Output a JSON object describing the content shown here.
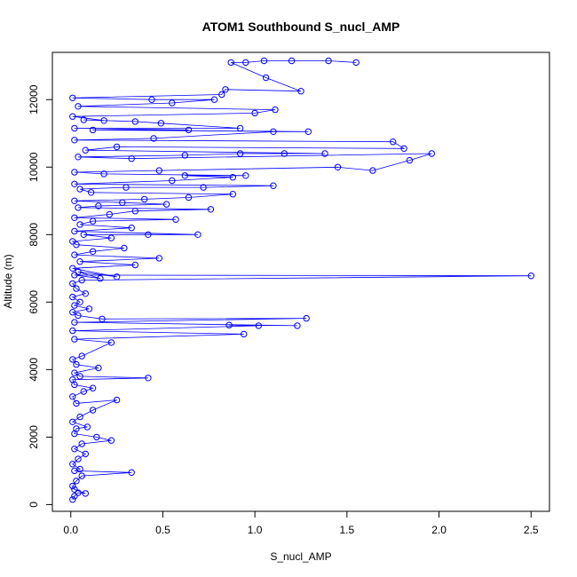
{
  "chart_data": {
    "type": "scatter",
    "title": "ATOM1 Southbound S_nucl_AMP",
    "xlabel": "S_nucl_AMP",
    "ylabel": "Altitude (m)",
    "xlim": [
      -0.1,
      2.6
    ],
    "ylim": [
      -200,
      13400
    ],
    "xticks": [
      0.0,
      0.5,
      1.0,
      1.5,
      2.0,
      2.5
    ],
    "xtick_labels": [
      "0.0",
      "0.5",
      "1.0",
      "1.5",
      "2.0",
      "2.5"
    ],
    "yticks": [
      0,
      2000,
      4000,
      6000,
      8000,
      10000,
      12000
    ],
    "ytick_labels": [
      "0",
      "2000",
      "4000",
      "6000",
      "8000",
      "10000",
      "12000"
    ],
    "grid": false,
    "legend": "none",
    "color": "#0000ff",
    "marker": "open-circle",
    "connected": true,
    "points": [
      [
        0.01,
        150
      ],
      [
        0.02,
        250
      ],
      [
        0.04,
        350
      ],
      [
        0.08,
        330
      ],
      [
        0.02,
        450
      ],
      [
        0.01,
        550
      ],
      [
        0.03,
        700
      ],
      [
        0.06,
        850
      ],
      [
        0.33,
        950
      ],
      [
        0.02,
        1000
      ],
      [
        0.05,
        1050
      ],
      [
        0.01,
        1200
      ],
      [
        0.04,
        1350
      ],
      [
        0.08,
        1500
      ],
      [
        0.02,
        1650
      ],
      [
        0.06,
        1800
      ],
      [
        0.22,
        1900
      ],
      [
        0.14,
        2000
      ],
      [
        0.02,
        2100
      ],
      [
        0.03,
        2250
      ],
      [
        0.09,
        2300
      ],
      [
        0.01,
        2450
      ],
      [
        0.05,
        2600
      ],
      [
        0.12,
        2800
      ],
      [
        0.25,
        3100
      ],
      [
        0.03,
        3000
      ],
      [
        0.01,
        3200
      ],
      [
        0.07,
        3350
      ],
      [
        0.12,
        3450
      ],
      [
        0.02,
        3550
      ],
      [
        0.01,
        3700
      ],
      [
        0.42,
        3750
      ],
      [
        0.05,
        3800
      ],
      [
        0.02,
        3900
      ],
      [
        0.15,
        4050
      ],
      [
        0.03,
        4150
      ],
      [
        0.01,
        4300
      ],
      [
        0.06,
        4400
      ],
      [
        0.22,
        4800
      ],
      [
        0.02,
        4900
      ],
      [
        0.94,
        5050
      ],
      [
        0.01,
        5150
      ],
      [
        1.02,
        5300
      ],
      [
        0.86,
        5320
      ],
      [
        1.23,
        5300
      ],
      [
        0.02,
        5400
      ],
      [
        1.28,
        5520
      ],
      [
        0.17,
        5500
      ],
      [
        0.04,
        5600
      ],
      [
        0.01,
        5700
      ],
      [
        0.1,
        5800
      ],
      [
        0.02,
        5900
      ],
      [
        0.05,
        6000
      ],
      [
        0.01,
        6150
      ],
      [
        0.08,
        6250
      ],
      [
        0.03,
        6400
      ],
      [
        0.01,
        6550
      ],
      [
        0.06,
        6650
      ],
      [
        2.5,
        6780
      ],
      [
        0.02,
        6800
      ],
      [
        0.16,
        6700
      ],
      [
        0.04,
        6900
      ],
      [
        0.25,
        6750
      ],
      [
        0.01,
        7000
      ],
      [
        0.35,
        7100
      ],
      [
        0.05,
        7200
      ],
      [
        0.48,
        7300
      ],
      [
        0.02,
        7400
      ],
      [
        0.12,
        7500
      ],
      [
        0.29,
        7600
      ],
      [
        0.03,
        7700
      ],
      [
        0.01,
        7800
      ],
      [
        0.22,
        7900
      ],
      [
        0.07,
        8000
      ],
      [
        0.42,
        8000
      ],
      [
        0.69,
        8000
      ],
      [
        0.02,
        8100
      ],
      [
        0.33,
        8200
      ],
      [
        0.05,
        8300
      ],
      [
        0.12,
        8400
      ],
      [
        0.57,
        8450
      ],
      [
        0.02,
        8500
      ],
      [
        0.21,
        8600
      ],
      [
        0.35,
        8700
      ],
      [
        0.76,
        8750
      ],
      [
        0.04,
        8800
      ],
      [
        0.15,
        8850
      ],
      [
        0.52,
        8900
      ],
      [
        0.28,
        8950
      ],
      [
        0.02,
        9000
      ],
      [
        0.4,
        9050
      ],
      [
        0.64,
        9100
      ],
      [
        0.88,
        9200
      ],
      [
        0.11,
        9250
      ],
      [
        0.05,
        9350
      ],
      [
        0.3,
        9400
      ],
      [
        0.72,
        9400
      ],
      [
        1.1,
        9450
      ],
      [
        0.02,
        9500
      ],
      [
        0.55,
        9600
      ],
      [
        0.88,
        9700
      ],
      [
        0.62,
        9750
      ],
      [
        0.95,
        9750
      ],
      [
        0.18,
        9800
      ],
      [
        0.02,
        9850
      ],
      [
        0.48,
        9900
      ],
      [
        1.45,
        10000
      ],
      [
        1.64,
        9900
      ],
      [
        1.84,
        10200
      ],
      [
        1.96,
        10400
      ],
      [
        0.33,
        10250
      ],
      [
        0.04,
        10300
      ],
      [
        0.62,
        10350
      ],
      [
        0.92,
        10400
      ],
      [
        1.16,
        10400
      ],
      [
        1.38,
        10400
      ],
      [
        0.08,
        10500
      ],
      [
        0.25,
        10600
      ],
      [
        1.81,
        10550
      ],
      [
        1.75,
        10750
      ],
      [
        0.02,
        10800
      ],
      [
        0.45,
        10850
      ],
      [
        1.1,
        11050
      ],
      [
        1.29,
        11050
      ],
      [
        0.12,
        11100
      ],
      [
        0.64,
        11100
      ],
      [
        0.02,
        11150
      ],
      [
        0.92,
        11150
      ],
      [
        0.49,
        11300
      ],
      [
        0.35,
        11350
      ],
      [
        0.07,
        11400
      ],
      [
        0.18,
        11380
      ],
      [
        0.01,
        11500
      ],
      [
        1.0,
        11600
      ],
      [
        1.11,
        11700
      ],
      [
        0.04,
        11800
      ],
      [
        0.55,
        11900
      ],
      [
        0.78,
        12000
      ],
      [
        0.44,
        12000
      ],
      [
        0.01,
        12050
      ],
      [
        0.82,
        12150
      ],
      [
        0.84,
        12300
      ],
      [
        1.25,
        12250
      ],
      [
        1.06,
        12650
      ],
      [
        0.87,
        13100
      ],
      [
        0.95,
        13100
      ],
      [
        1.05,
        13150
      ],
      [
        1.2,
        13150
      ],
      [
        1.4,
        13150
      ],
      [
        1.55,
        13100
      ]
    ]
  }
}
